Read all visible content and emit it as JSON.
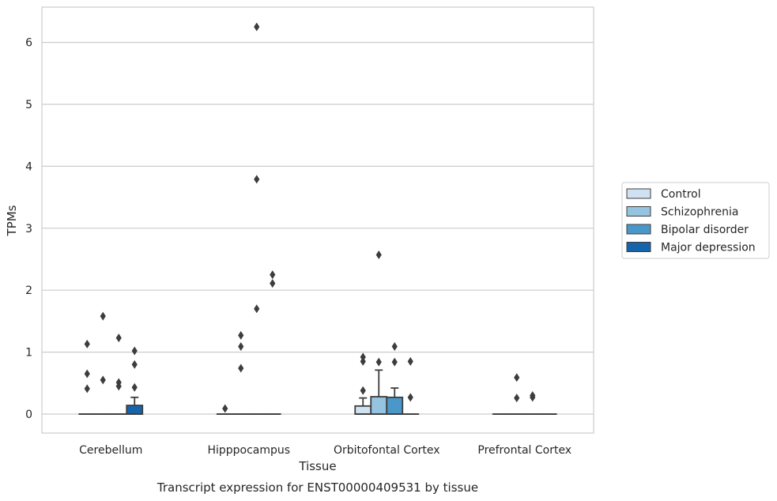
{
  "chart_data": {
    "type": "box",
    "caption": "Transcript expression for ENST00000409531 by tissue",
    "xlabel": "Tissue",
    "ylabel": "TPMs",
    "ylim": [
      -0.3,
      6.58
    ],
    "yticks": [
      "0",
      "1",
      "2",
      "3",
      "4",
      "5",
      "6"
    ],
    "grid": "horizontal",
    "legend_position": "right",
    "categories": [
      "Cerebellum",
      "Hipppocampus",
      "Orbitofontal Cortex",
      "Prefrontal Cortex"
    ],
    "series": [
      {
        "name": "Control",
        "color": "#d0e1f2",
        "boxes": [
          {
            "q1": 0,
            "median": 0,
            "q3": 0,
            "whisker_low": 0,
            "whisker_high": 0,
            "outliers": [
              0.41,
              0.65,
              1.13
            ]
          },
          {
            "q1": 0,
            "median": 0,
            "q3": 0,
            "whisker_low": 0,
            "whisker_high": 0,
            "outliers": [
              0.09
            ]
          },
          {
            "q1": 0,
            "median": 0,
            "q3": 0.13,
            "whisker_low": 0,
            "whisker_high": 0.26,
            "outliers": [
              0.38,
              0.85,
              0.92
            ]
          },
          {
            "q1": 0,
            "median": 0,
            "q3": 0,
            "whisker_low": 0,
            "whisker_high": 0,
            "outliers": []
          }
        ]
      },
      {
        "name": "Schizophrenia",
        "color": "#94c4df",
        "boxes": [
          {
            "q1": 0,
            "median": 0,
            "q3": 0,
            "whisker_low": 0,
            "whisker_high": 0,
            "outliers": [
              0.55,
              1.58
            ]
          },
          {
            "q1": 0,
            "median": 0,
            "q3": 0,
            "whisker_low": 0,
            "whisker_high": 0,
            "outliers": [
              0.74,
              1.09,
              1.27
            ]
          },
          {
            "q1": 0,
            "median": 0,
            "q3": 0.28,
            "whisker_low": 0,
            "whisker_high": 0.71,
            "outliers": [
              0.84,
              2.57
            ]
          },
          {
            "q1": 0,
            "median": 0,
            "q3": 0,
            "whisker_low": 0,
            "whisker_high": 0,
            "outliers": [
              0.26,
              0.59
            ]
          }
        ]
      },
      {
        "name": "Bipolar disorder",
        "color": "#4a98c9",
        "boxes": [
          {
            "q1": 0,
            "median": 0,
            "q3": 0,
            "whisker_low": 0,
            "whisker_high": 0,
            "outliers": [
              0.45,
              0.51,
              1.23
            ]
          },
          {
            "q1": 0,
            "median": 0,
            "q3": 0,
            "whisker_low": 0,
            "whisker_high": 0,
            "outliers": [
              1.7,
              3.79,
              6.25
            ]
          },
          {
            "q1": 0,
            "median": 0,
            "q3": 0.27,
            "whisker_low": 0,
            "whisker_high": 0.42,
            "outliers": [
              0.84,
              1.09
            ]
          },
          {
            "q1": 0,
            "median": 0,
            "q3": 0,
            "whisker_low": 0,
            "whisker_high": 0,
            "outliers": [
              0.27,
              0.3
            ]
          }
        ]
      },
      {
        "name": "Major depression",
        "color": "#1764ab",
        "boxes": [
          {
            "q1": 0,
            "median": 0,
            "q3": 0.14,
            "whisker_low": 0,
            "whisker_high": 0.27,
            "outliers": [
              0.43,
              0.8,
              1.02
            ]
          },
          {
            "q1": 0,
            "median": 0,
            "q3": 0,
            "whisker_low": 0,
            "whisker_high": 0,
            "outliers": [
              2.11,
              2.25
            ]
          },
          {
            "q1": 0,
            "median": 0,
            "q3": 0,
            "whisker_low": 0,
            "whisker_high": 0,
            "outliers": [
              0.27,
              0.85
            ]
          },
          {
            "q1": 0,
            "median": 0,
            "q3": 0,
            "whisker_low": 0,
            "whisker_high": 0,
            "outliers": []
          }
        ]
      }
    ]
  }
}
